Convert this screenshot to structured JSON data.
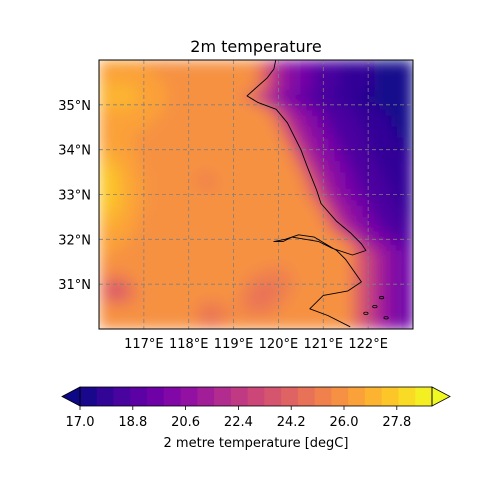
{
  "chart_data": {
    "type": "heatmap",
    "title": "2m temperature",
    "map": {
      "projection": "PlateCarree",
      "lon_range": [
        116.0,
        123.0
      ],
      "lat_range": [
        30.0,
        36.0
      ],
      "coastlines": true,
      "gridlines": true,
      "gridline_style": "dashed gray"
    },
    "x_ticks": [
      117,
      118,
      119,
      120,
      121,
      122
    ],
    "x_tick_labels": [
      "117°E",
      "118°E",
      "119°E",
      "120°E",
      "121°E",
      "122°E"
    ],
    "y_ticks": [
      35,
      34,
      33,
      32,
      31
    ],
    "y_tick_labels": [
      "35°N",
      "34°N",
      "33°N",
      "32°N",
      "31°N"
    ],
    "colorbar": {
      "label": "2 metre temperature [degC]",
      "orientation": "horizontal",
      "colormap": "plasma",
      "extend": "both",
      "vmin": 17.0,
      "vmax": 29.0,
      "levels": 21,
      "tick_values": [
        17.0,
        18.8,
        20.6,
        22.4,
        24.2,
        26.0,
        27.8
      ],
      "tick_labels": [
        "17.0",
        "18.8",
        "20.6",
        "22.4",
        "24.2",
        "26.0",
        "27.8"
      ]
    },
    "field_description_values": {
      "units": "degC",
      "approx_min": 17.0,
      "approx_max": 29.0
    }
  }
}
